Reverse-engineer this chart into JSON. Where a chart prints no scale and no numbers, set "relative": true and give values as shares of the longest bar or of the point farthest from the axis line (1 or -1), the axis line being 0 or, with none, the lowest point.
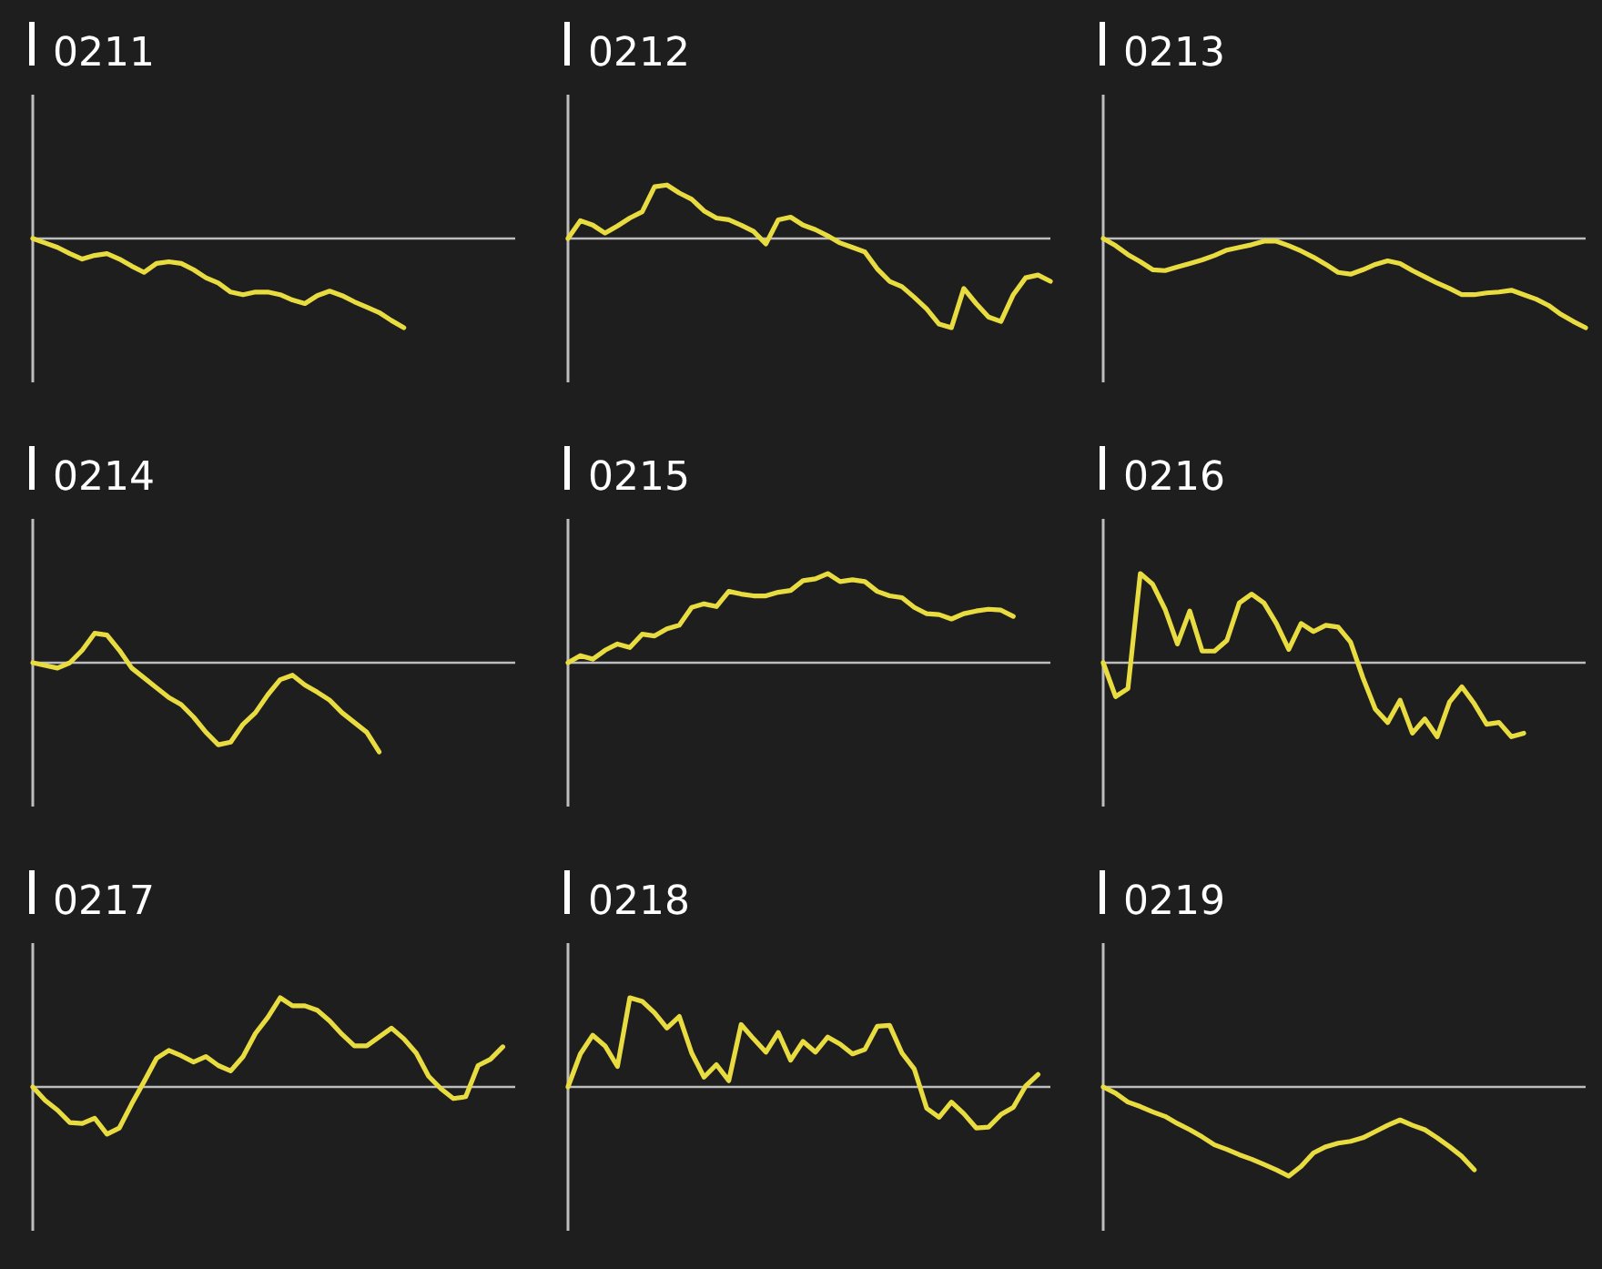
{
  "chart_data": [
    {
      "type": "line",
      "title": "0211",
      "relative": true,
      "categories": [
        null,
        null,
        null,
        null,
        null,
        null,
        null,
        null,
        null,
        null,
        null,
        null,
        null,
        null,
        null,
        null,
        null,
        null,
        null,
        null,
        null,
        null,
        null,
        null,
        null,
        null,
        null,
        null,
        null,
        null,
        null,
        null,
        null,
        null,
        null,
        null,
        null,
        null,
        null,
        null
      ],
      "series": [
        {
          "color": "#e8dc40",
          "values": [
            0,
            -0.05,
            -0.1,
            -0.17,
            -0.23,
            -0.19,
            -0.17,
            -0.23,
            -0.31,
            -0.38,
            -0.28,
            -0.26,
            -0.28,
            -0.35,
            -0.44,
            -0.5,
            -0.6,
            -0.63,
            -0.6,
            -0.6,
            -0.63,
            -0.69,
            -0.73,
            -0.64,
            -0.59,
            -0.64,
            -0.71,
            -0.77,
            -0.83,
            -0.92,
            -1,
            null,
            null,
            null,
            null,
            null,
            null,
            null,
            null,
            null
          ]
        }
      ]
    },
    {
      "type": "line",
      "title": "0212",
      "relative": true,
      "categories": [
        null,
        null,
        null,
        null,
        null,
        null,
        null,
        null,
        null,
        null,
        null,
        null,
        null,
        null,
        null,
        null,
        null,
        null,
        null,
        null,
        null,
        null,
        null,
        null,
        null,
        null,
        null,
        null,
        null,
        null,
        null,
        null,
        null,
        null,
        null,
        null,
        null,
        null,
        null,
        null
      ],
      "series": [
        {
          "color": "#e8dc40",
          "values": [
            0,
            0.2,
            0.15,
            0.06,
            0.14,
            0.23,
            0.3,
            0.58,
            0.6,
            0.51,
            0.44,
            0.31,
            0.23,
            0.21,
            0.15,
            0.08,
            -0.06,
            0.21,
            0.24,
            0.15,
            0.1,
            0.03,
            -0.05,
            -0.1,
            -0.15,
            -0.34,
            -0.48,
            -0.54,
            -0.66,
            -0.79,
            -0.96,
            -1,
            -0.56,
            -0.73,
            -0.88,
            -0.93,
            -0.63,
            -0.44,
            -0.41,
            -0.48
          ]
        }
      ]
    },
    {
      "type": "line",
      "title": "0213",
      "relative": true,
      "categories": [
        null,
        null,
        null,
        null,
        null,
        null,
        null,
        null,
        null,
        null,
        null,
        null,
        null,
        null,
        null,
        null,
        null,
        null,
        null,
        null,
        null,
        null,
        null,
        null,
        null,
        null,
        null,
        null,
        null,
        null,
        null,
        null,
        null,
        null,
        null,
        null,
        null,
        null,
        null,
        null
      ],
      "series": [
        {
          "color": "#e8dc40",
          "values": [
            0,
            -0.08,
            -0.18,
            -0.26,
            -0.35,
            -0.36,
            -0.32,
            -0.28,
            -0.24,
            -0.19,
            -0.13,
            -0.1,
            -0.07,
            -0.03,
            -0.03,
            -0.08,
            -0.14,
            -0.21,
            -0.29,
            -0.38,
            -0.4,
            -0.35,
            -0.29,
            -0.25,
            -0.28,
            -0.36,
            -0.43,
            -0.5,
            -0.56,
            -0.63,
            -0.63,
            -0.61,
            -0.6,
            -0.58,
            -0.63,
            -0.68,
            -0.75,
            -0.85,
            -0.93,
            -1
          ]
        }
      ]
    },
    {
      "type": "line",
      "title": "0214",
      "relative": true,
      "categories": [
        null,
        null,
        null,
        null,
        null,
        null,
        null,
        null,
        null,
        null,
        null,
        null,
        null,
        null,
        null,
        null,
        null,
        null,
        null,
        null,
        null,
        null,
        null,
        null,
        null,
        null,
        null,
        null,
        null,
        null,
        null,
        null,
        null,
        null,
        null,
        null,
        null,
        null,
        null,
        null
      ],
      "series": [
        {
          "color": "#e8dc40",
          "values": [
            0,
            -0.03,
            -0.06,
            0,
            0.14,
            0.33,
            0.31,
            0.14,
            -0.06,
            -0.17,
            -0.28,
            -0.39,
            -0.47,
            -0.61,
            -0.78,
            -0.92,
            -0.89,
            -0.69,
            -0.56,
            -0.36,
            -0.19,
            -0.14,
            -0.25,
            -0.33,
            -0.42,
            -0.56,
            -0.67,
            -0.78,
            -1,
            null,
            null,
            null,
            null,
            null,
            null,
            null,
            null,
            null,
            null,
            null
          ]
        }
      ]
    },
    {
      "type": "line",
      "title": "0215",
      "relative": true,
      "categories": [
        null,
        null,
        null,
        null,
        null,
        null,
        null,
        null,
        null,
        null,
        null,
        null,
        null,
        null,
        null,
        null,
        null,
        null,
        null,
        null,
        null,
        null,
        null,
        null,
        null,
        null,
        null,
        null,
        null,
        null,
        null,
        null,
        null,
        null,
        null,
        null,
        null,
        null,
        null,
        null
      ],
      "series": [
        {
          "color": "#e8dc40",
          "values": [
            0,
            0.08,
            0.04,
            0.14,
            0.21,
            0.17,
            0.32,
            0.3,
            0.38,
            0.42,
            0.62,
            0.66,
            0.63,
            0.8,
            0.77,
            0.75,
            0.75,
            0.79,
            0.81,
            0.92,
            0.94,
            1,
            0.91,
            0.93,
            0.91,
            0.8,
            0.75,
            0.73,
            0.62,
            0.55,
            0.54,
            0.49,
            0.55,
            0.58,
            0.6,
            0.59,
            0.52,
            null,
            null,
            null
          ]
        }
      ]
    },
    {
      "type": "line",
      "title": "0216",
      "relative": true,
      "categories": [
        null,
        null,
        null,
        null,
        null,
        null,
        null,
        null,
        null,
        null,
        null,
        null,
        null,
        null,
        null,
        null,
        null,
        null,
        null,
        null,
        null,
        null,
        null,
        null,
        null,
        null,
        null,
        null,
        null,
        null,
        null,
        null,
        null,
        null,
        null,
        null,
        null,
        null,
        null,
        null
      ],
      "series": [
        {
          "color": "#e8dc40",
          "values": [
            0,
            -0.38,
            -0.29,
            1,
            0.88,
            0.6,
            0.21,
            0.58,
            0.13,
            0.13,
            0.25,
            0.67,
            0.77,
            0.67,
            0.44,
            0.15,
            0.44,
            0.35,
            0.42,
            0.4,
            0.23,
            -0.17,
            -0.52,
            -0.67,
            -0.42,
            -0.79,
            -0.63,
            -0.83,
            -0.44,
            -0.27,
            -0.46,
            -0.69,
            -0.67,
            -0.83,
            -0.79,
            null,
            null,
            null,
            null,
            null
          ]
        }
      ]
    },
    {
      "type": "line",
      "title": "0217",
      "relative": true,
      "categories": [
        null,
        null,
        null,
        null,
        null,
        null,
        null,
        null,
        null,
        null,
        null,
        null,
        null,
        null,
        null,
        null,
        null,
        null,
        null,
        null,
        null,
        null,
        null,
        null,
        null,
        null,
        null,
        null,
        null,
        null,
        null,
        null,
        null,
        null,
        null,
        null,
        null,
        null,
        null,
        null
      ],
      "series": [
        {
          "color": "#e8dc40",
          "values": [
            0,
            -0.15,
            -0.26,
            -0.4,
            -0.41,
            -0.35,
            -0.53,
            -0.46,
            -0.19,
            0.06,
            0.32,
            0.41,
            0.35,
            0.28,
            0.34,
            0.24,
            0.18,
            0.34,
            0.6,
            0.78,
            1,
            0.91,
            0.91,
            0.86,
            0.74,
            0.59,
            0.46,
            0.46,
            0.56,
            0.66,
            0.54,
            0.38,
            0.12,
            -0.02,
            -0.13,
            -0.11,
            0.24,
            0.31,
            0.45,
            null
          ]
        }
      ]
    },
    {
      "type": "line",
      "title": "0218",
      "relative": true,
      "categories": [
        null,
        null,
        null,
        null,
        null,
        null,
        null,
        null,
        null,
        null,
        null,
        null,
        null,
        null,
        null,
        null,
        null,
        null,
        null,
        null,
        null,
        null,
        null,
        null,
        null,
        null,
        null,
        null,
        null,
        null,
        null,
        null,
        null,
        null,
        null,
        null,
        null,
        null,
        null,
        null
      ],
      "series": [
        {
          "color": "#e8dc40",
          "values": [
            0,
            0.37,
            0.58,
            0.46,
            0.23,
            1,
            0.96,
            0.83,
            0.66,
            0.79,
            0.38,
            0.11,
            0.25,
            0.07,
            0.7,
            0.54,
            0.39,
            0.61,
            0.3,
            0.51,
            0.39,
            0.56,
            0.48,
            0.37,
            0.42,
            0.68,
            0.69,
            0.38,
            0.2,
            -0.24,
            -0.34,
            -0.17,
            -0.3,
            -0.46,
            -0.45,
            -0.31,
            -0.23,
            0.01,
            0.14,
            null
          ]
        }
      ]
    },
    {
      "type": "line",
      "title": "0219",
      "relative": true,
      "categories": [
        null,
        null,
        null,
        null,
        null,
        null,
        null,
        null,
        null,
        null,
        null,
        null,
        null,
        null,
        null,
        null,
        null,
        null,
        null,
        null,
        null,
        null,
        null,
        null,
        null,
        null,
        null,
        null,
        null,
        null,
        null,
        null,
        null,
        null,
        null,
        null,
        null,
        null,
        null,
        null
      ],
      "series": [
        {
          "color": "#e8dc40",
          "values": [
            0,
            -0.07,
            -0.17,
            -0.22,
            -0.28,
            -0.33,
            -0.41,
            -0.48,
            -0.56,
            -0.65,
            -0.7,
            -0.76,
            -0.81,
            -0.87,
            -0.93,
            -1,
            -0.89,
            -0.74,
            -0.67,
            -0.63,
            -0.61,
            -0.57,
            -0.5,
            -0.43,
            -0.37,
            -0.43,
            -0.48,
            -0.57,
            -0.67,
            -0.78,
            -0.93,
            null,
            null,
            null,
            null,
            null,
            null,
            null,
            null,
            null
          ]
        }
      ]
    }
  ]
}
